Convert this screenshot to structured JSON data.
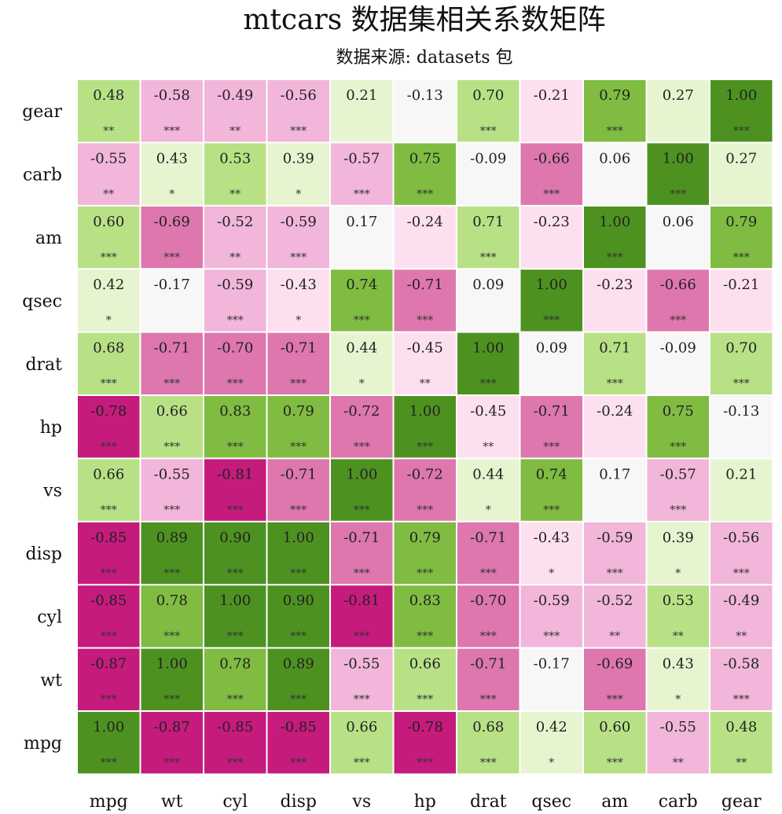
{
  "chart_data": {
    "type": "heatmap",
    "title": "mtcars 数据集相关系数矩阵",
    "subtitle": "数据来源: datasets 包",
    "x_labels": [
      "mpg",
      "wt",
      "cyl",
      "disp",
      "vs",
      "hp",
      "drat",
      "qsec",
      "am",
      "carb",
      "gear"
    ],
    "y_labels_top_to_bottom": [
      "gear",
      "carb",
      "am",
      "qsec",
      "drat",
      "hp",
      "vs",
      "disp",
      "cyl",
      "wt",
      "mpg"
    ],
    "value_range": [
      -1,
      1
    ],
    "colors": {
      "strong_negative": "#c51b7d",
      "medium_negative": "#de77ae",
      "weak_negative": "#f1b6da",
      "very_weak_negative": "#fde0ef",
      "neutral": "#f7f7f7",
      "very_weak_positive": "#e6f5d0",
      "weak_positive": "#b8e186",
      "medium_positive": "#7fbc41",
      "strong_positive": "#4d9221"
    },
    "rows": [
      {
        "values": [
          0.48,
          -0.58,
          -0.49,
          -0.56,
          0.21,
          -0.13,
          0.7,
          -0.21,
          0.79,
          0.27,
          1.0
        ],
        "labels": [
          "0.48",
          "-0.58",
          "-0.49",
          "-0.56",
          "0.21",
          "-0.13",
          "0.70",
          "-0.21",
          "0.79",
          "0.27",
          "1.00"
        ],
        "sig": [
          "**",
          "***",
          "**",
          "***",
          "",
          "",
          "***",
          "",
          "***",
          "",
          "***"
        ]
      },
      {
        "values": [
          -0.55,
          0.43,
          0.53,
          0.39,
          -0.57,
          0.75,
          -0.09,
          -0.66,
          0.06,
          1.0,
          0.27
        ],
        "labels": [
          "-0.55",
          "0.43",
          "0.53",
          "0.39",
          "-0.57",
          "0.75",
          "-0.09",
          "-0.66",
          "0.06",
          "1.00",
          "0.27"
        ],
        "sig": [
          "**",
          "*",
          "**",
          "*",
          "***",
          "***",
          "",
          "***",
          "",
          "***",
          ""
        ]
      },
      {
        "values": [
          0.6,
          -0.69,
          -0.52,
          -0.59,
          0.17,
          -0.24,
          0.71,
          -0.23,
          1.0,
          0.06,
          0.79
        ],
        "labels": [
          "0.60",
          "-0.69",
          "-0.52",
          "-0.59",
          "0.17",
          "-0.24",
          "0.71",
          "-0.23",
          "1.00",
          "0.06",
          "0.79"
        ],
        "sig": [
          "***",
          "***",
          "**",
          "***",
          "",
          "",
          "***",
          "",
          "***",
          "",
          "***"
        ]
      },
      {
        "values": [
          0.42,
          -0.17,
          -0.59,
          -0.43,
          0.74,
          -0.71,
          0.09,
          1.0,
          -0.23,
          -0.66,
          -0.21
        ],
        "labels": [
          "0.42",
          "-0.17",
          "-0.59",
          "-0.43",
          "0.74",
          "-0.71",
          "0.09",
          "1.00",
          "-0.23",
          "-0.66",
          "-0.21"
        ],
        "sig": [
          "*",
          "",
          "***",
          "*",
          "***",
          "***",
          "",
          "***",
          "",
          "***",
          ""
        ]
      },
      {
        "values": [
          0.68,
          -0.71,
          -0.7,
          -0.71,
          0.44,
          -0.45,
          1.0,
          0.09,
          0.71,
          -0.09,
          0.7
        ],
        "labels": [
          "0.68",
          "-0.71",
          "-0.70",
          "-0.71",
          "0.44",
          "-0.45",
          "1.00",
          "0.09",
          "0.71",
          "-0.09",
          "0.70"
        ],
        "sig": [
          "***",
          "***",
          "***",
          "***",
          "*",
          "**",
          "***",
          "",
          "***",
          "",
          "***"
        ]
      },
      {
        "values": [
          -0.78,
          0.66,
          0.83,
          0.79,
          -0.72,
          1.0,
          -0.45,
          -0.71,
          -0.24,
          0.75,
          -0.13
        ],
        "labels": [
          "-0.78",
          "0.66",
          "0.83",
          "0.79",
          "-0.72",
          "1.00",
          "-0.45",
          "-0.71",
          "-0.24",
          "0.75",
          "-0.13"
        ],
        "sig": [
          "***",
          "***",
          "***",
          "***",
          "***",
          "***",
          "**",
          "***",
          "",
          "***",
          ""
        ]
      },
      {
        "values": [
          0.66,
          -0.55,
          -0.81,
          -0.71,
          1.0,
          -0.72,
          0.44,
          0.74,
          0.17,
          -0.57,
          0.21
        ],
        "labels": [
          "0.66",
          "-0.55",
          "-0.81",
          "-0.71",
          "1.00",
          "-0.72",
          "0.44",
          "0.74",
          "0.17",
          "-0.57",
          "0.21"
        ],
        "sig": [
          "***",
          "***",
          "***",
          "***",
          "***",
          "***",
          "*",
          "***",
          "",
          "***",
          ""
        ]
      },
      {
        "values": [
          -0.85,
          0.89,
          0.9,
          1.0,
          -0.71,
          0.79,
          -0.71,
          -0.43,
          -0.59,
          0.39,
          -0.56
        ],
        "labels": [
          "-0.85",
          "0.89",
          "0.90",
          "1.00",
          "-0.71",
          "0.79",
          "-0.71",
          "-0.43",
          "-0.59",
          "0.39",
          "-0.56"
        ],
        "sig": [
          "***",
          "***",
          "***",
          "***",
          "***",
          "***",
          "***",
          "*",
          "***",
          "*",
          "***"
        ]
      },
      {
        "values": [
          -0.85,
          0.78,
          1.0,
          0.9,
          -0.81,
          0.83,
          -0.7,
          -0.59,
          -0.52,
          0.53,
          -0.49
        ],
        "labels": [
          "-0.85",
          "0.78",
          "1.00",
          "0.90",
          "-0.81",
          "0.83",
          "-0.70",
          "-0.59",
          "-0.52",
          "0.53",
          "-0.49"
        ],
        "sig": [
          "***",
          "***",
          "***",
          "***",
          "***",
          "***",
          "***",
          "***",
          "**",
          "**",
          "**"
        ]
      },
      {
        "values": [
          -0.87,
          1.0,
          0.78,
          0.89,
          -0.55,
          0.66,
          -0.71,
          -0.17,
          -0.69,
          0.43,
          -0.58
        ],
        "labels": [
          "-0.87",
          "1.00",
          "0.78",
          "0.89",
          "-0.55",
          "0.66",
          "-0.71",
          "-0.17",
          "-0.69",
          "0.43",
          "-0.58"
        ],
        "sig": [
          "***",
          "***",
          "***",
          "***",
          "***",
          "***",
          "***",
          "",
          "***",
          "*",
          "***"
        ]
      },
      {
        "values": [
          1.0,
          -0.87,
          -0.85,
          -0.85,
          0.66,
          -0.78,
          0.68,
          0.42,
          0.6,
          -0.55,
          0.48
        ],
        "labels": [
          "1.00",
          "-0.87",
          "-0.85",
          "-0.85",
          "0.66",
          "-0.78",
          "0.68",
          "0.42",
          "0.60",
          "-0.55",
          "0.48"
        ],
        "sig": [
          "***",
          "***",
          "***",
          "***",
          "***",
          "***",
          "***",
          "*",
          "***",
          "**",
          "**"
        ]
      }
    ]
  }
}
